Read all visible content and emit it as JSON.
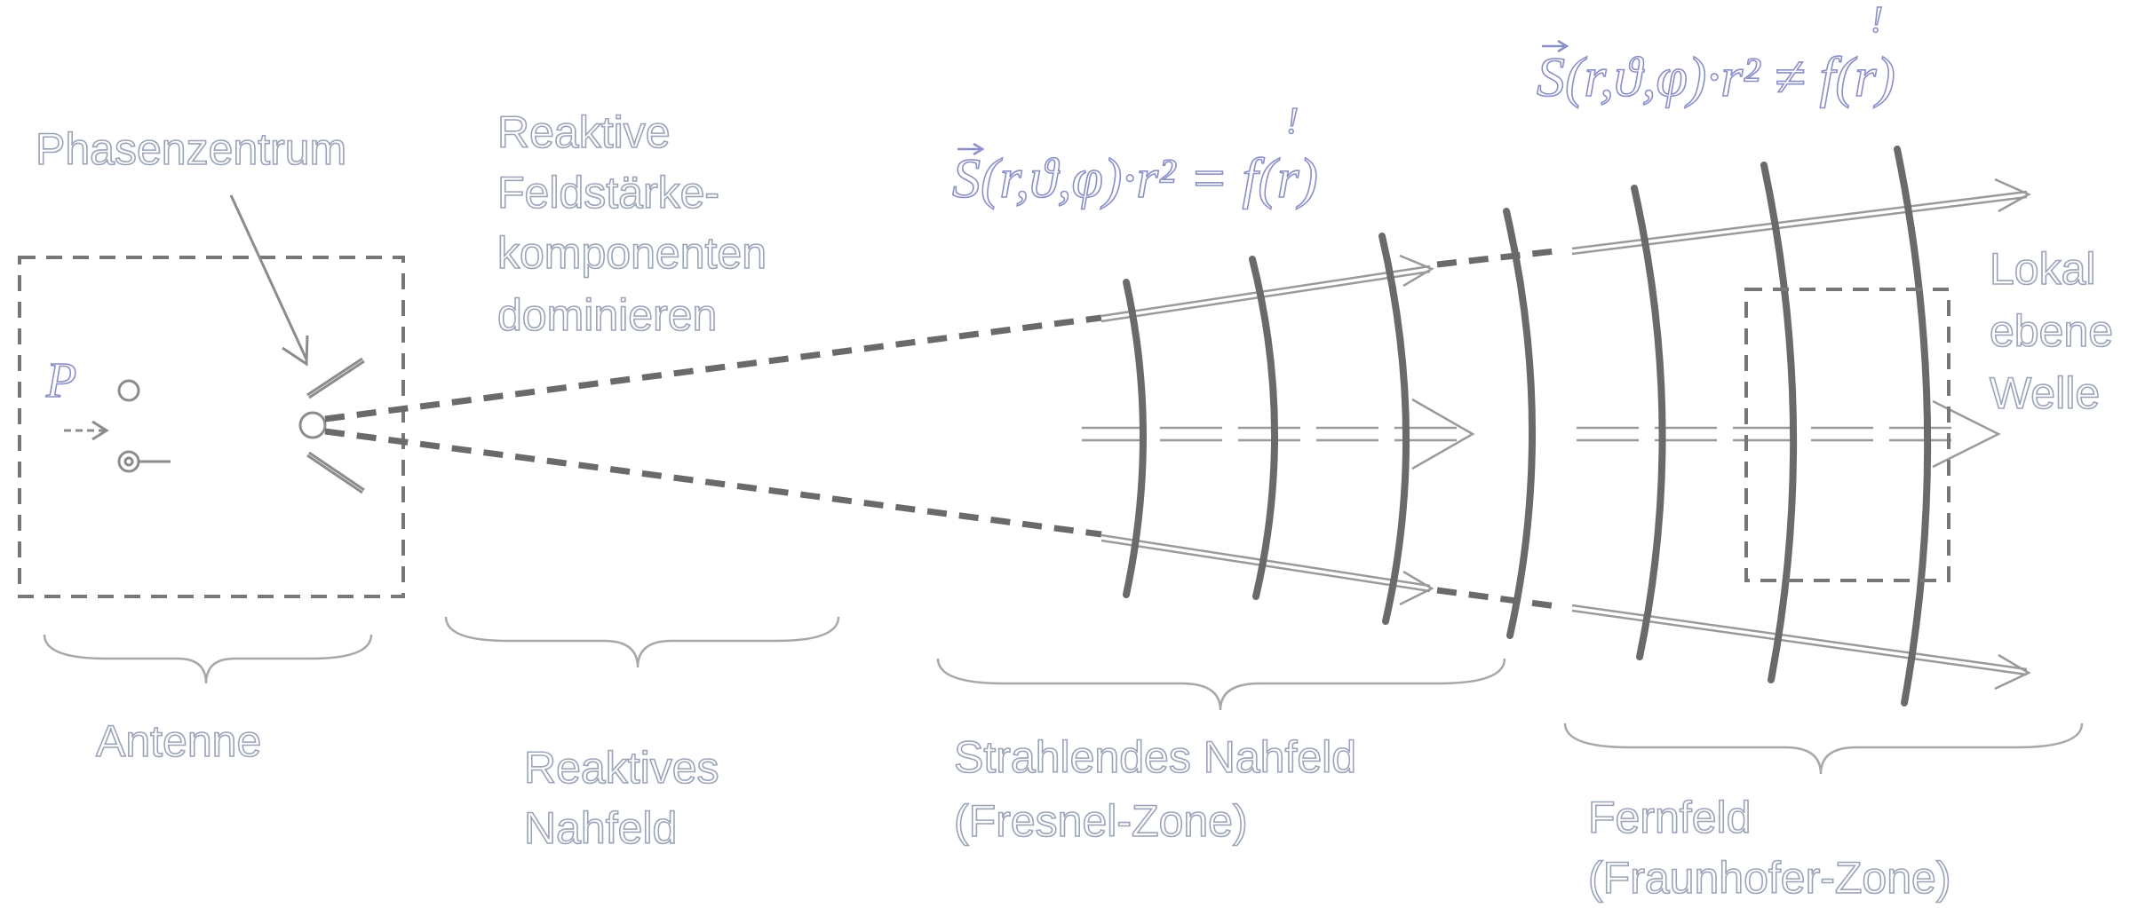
{
  "labels": {
    "phase_center": "Phasenzentrum",
    "reactive_components": [
      "Reaktive",
      "Feldstärke-",
      "komponenten",
      "dominieren"
    ],
    "antenna": "Antenne",
    "reactive_nearfield": [
      "Reaktives",
      "Nahfeld"
    ],
    "radiating_nearfield": [
      "Strahlendes Nahfeld",
      "(Fresnel-Zone)"
    ],
    "farfield": [
      "Fernfeld",
      "(Fraunhofer-Zone)"
    ],
    "plane_wave": [
      "Lokal",
      "ebene",
      "Welle"
    ],
    "power_symbol": "P"
  },
  "equations": {
    "fresnel": "S(r,ϑ,φ)·r² = f(r)",
    "fraunhofer": "S(r,ϑ,φ)·r² ≠ f(r)",
    "exclamation": "!"
  },
  "colors": {
    "line_gray": "#666666",
    "outline_gray": "#8c8c8c",
    "text_outline": "#9aa3b8",
    "math_outline": "#8a8fc8"
  }
}
